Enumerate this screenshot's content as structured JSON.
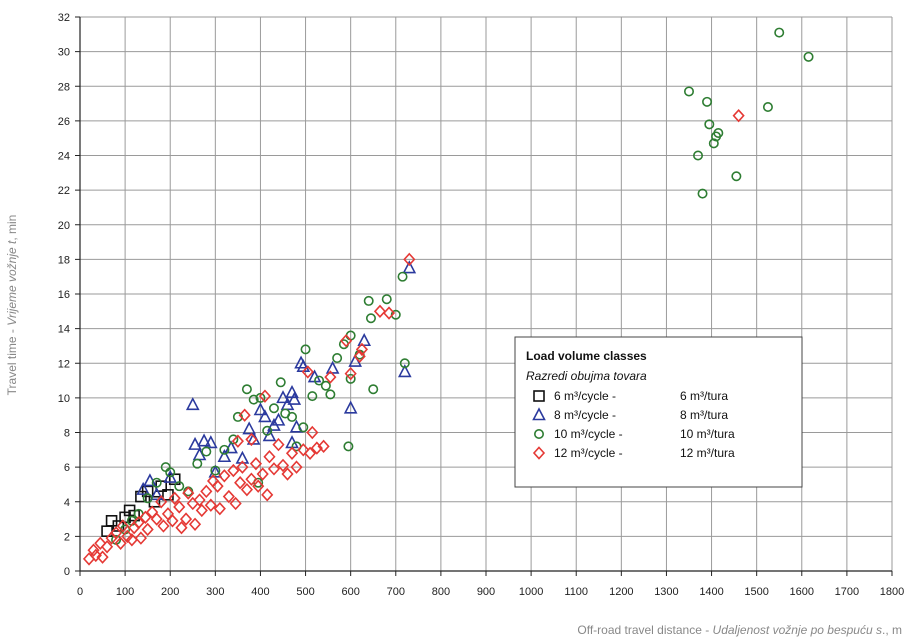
{
  "chart_data": {
    "type": "scatter",
    "xlabel_plain": "Off-road travel distance - ",
    "xlabel_italic": "Udaljenost vožnje po bespuću s",
    "xlabel_suffix": "., m",
    "ylabel_plain": "Travel time - ",
    "ylabel_italic": "Vrijeme vožnje t",
    "ylabel_suffix": ", min",
    "xlim": [
      0,
      1800
    ],
    "ylim": [
      0,
      32
    ],
    "x_ticks": [
      "0",
      "100",
      "200",
      "300",
      "400",
      "500",
      "600",
      "700",
      "800",
      "900",
      "1000",
      "1100",
      "1200",
      "1300",
      "1400",
      "1500",
      "1600",
      "1700",
      "1800"
    ],
    "y_ticks": [
      "0",
      "2",
      "4",
      "6",
      "8",
      "10",
      "12",
      "14",
      "16",
      "18",
      "20",
      "22",
      "24",
      "26",
      "28",
      "30",
      "32"
    ],
    "grid": true,
    "legend_position": "center-right",
    "legend_title": "Load volume classes",
    "legend_subtitle": "Razredi obujma tovara",
    "series": [
      {
        "name": "6 m³/cycle - 6 m³/tura",
        "label_left": "6 m³/cycle  -",
        "label_right": "6 m³/tura",
        "marker": "square",
        "color": "#111111",
        "points": [
          [
            70,
            2.9
          ],
          [
            85,
            2.6
          ],
          [
            100,
            3.1
          ],
          [
            110,
            3.5
          ],
          [
            120,
            3.2
          ],
          [
            135,
            4.3
          ],
          [
            150,
            4.6
          ],
          [
            165,
            4.0
          ],
          [
            180,
            4.9
          ],
          [
            195,
            4.4
          ],
          [
            210,
            5.3
          ],
          [
            60,
            2.3
          ]
        ]
      },
      {
        "name": "8 m³/cycle - 8 m³/tura",
        "label_left": "8 m³/cycle  -",
        "label_right": "8 m³/tura",
        "marker": "triangle",
        "color": "#2b3a9e",
        "points": [
          [
            140,
            4.7
          ],
          [
            155,
            5.2
          ],
          [
            170,
            4.4
          ],
          [
            200,
            5.4
          ],
          [
            250,
            9.6
          ],
          [
            255,
            7.3
          ],
          [
            265,
            6.7
          ],
          [
            275,
            7.5
          ],
          [
            290,
            7.4
          ],
          [
            300,
            5.7
          ],
          [
            320,
            6.6
          ],
          [
            335,
            7.1
          ],
          [
            360,
            6.5
          ],
          [
            375,
            8.2
          ],
          [
            385,
            7.6
          ],
          [
            400,
            9.3
          ],
          [
            410,
            8.9
          ],
          [
            420,
            7.8
          ],
          [
            430,
            8.4
          ],
          [
            440,
            8.7
          ],
          [
            450,
            10.0
          ],
          [
            460,
            9.6
          ],
          [
            470,
            10.3
          ],
          [
            475,
            9.9
          ],
          [
            480,
            8.3
          ],
          [
            490,
            12.0
          ],
          [
            495,
            11.8
          ],
          [
            520,
            11.2
          ],
          [
            560,
            11.7
          ],
          [
            610,
            12.1
          ],
          [
            630,
            13.3
          ],
          [
            720,
            11.5
          ],
          [
            730,
            17.5
          ],
          [
            600,
            9.4
          ],
          [
            470,
            7.4
          ]
        ]
      },
      {
        "name": "10 m³/cycle - 10 m³/tura",
        "label_left": "10 m³/cycle  -",
        "label_right": "10 m³/tura",
        "marker": "circle",
        "color": "#2e7d32",
        "points": [
          [
            80,
            1.8
          ],
          [
            100,
            2.4
          ],
          [
            115,
            2.9
          ],
          [
            130,
            3.3
          ],
          [
            150,
            4.2
          ],
          [
            170,
            5.1
          ],
          [
            190,
            6.0
          ],
          [
            200,
            5.7
          ],
          [
            220,
            4.9
          ],
          [
            240,
            4.6
          ],
          [
            260,
            6.2
          ],
          [
            280,
            6.9
          ],
          [
            300,
            5.8
          ],
          [
            320,
            7.0
          ],
          [
            340,
            7.6
          ],
          [
            350,
            8.9
          ],
          [
            370,
            10.5
          ],
          [
            385,
            9.9
          ],
          [
            395,
            5.1
          ],
          [
            400,
            10.0
          ],
          [
            415,
            8.1
          ],
          [
            430,
            9.4
          ],
          [
            445,
            10.9
          ],
          [
            455,
            9.1
          ],
          [
            470,
            8.9
          ],
          [
            480,
            7.2
          ],
          [
            495,
            8.3
          ],
          [
            500,
            12.8
          ],
          [
            515,
            10.1
          ],
          [
            530,
            11.0
          ],
          [
            545,
            10.7
          ],
          [
            555,
            10.2
          ],
          [
            570,
            12.3
          ],
          [
            585,
            13.1
          ],
          [
            600,
            11.1
          ],
          [
            600,
            13.6
          ],
          [
            620,
            12.5
          ],
          [
            640,
            15.6
          ],
          [
            645,
            14.6
          ],
          [
            650,
            10.5
          ],
          [
            680,
            15.7
          ],
          [
            700,
            14.8
          ],
          [
            715,
            17.0
          ],
          [
            720,
            12.0
          ],
          [
            595,
            7.2
          ],
          [
            1350,
            27.7
          ],
          [
            1370,
            24.0
          ],
          [
            1380,
            21.8
          ],
          [
            1390,
            27.1
          ],
          [
            1395,
            25.8
          ],
          [
            1405,
            24.7
          ],
          [
            1410,
            25.1
          ],
          [
            1415,
            25.3
          ],
          [
            1455,
            22.8
          ],
          [
            1525,
            26.8
          ],
          [
            1550,
            31.1
          ],
          [
            1615,
            29.7
          ]
        ]
      },
      {
        "name": "12 m³/cycle - 12 m³/tura",
        "label_left": "12 m³/cycle  -",
        "label_right": "12 m³/tura",
        "marker": "diamond",
        "color": "#e53935",
        "points": [
          [
            20,
            0.7
          ],
          [
            30,
            1.2
          ],
          [
            35,
            0.9
          ],
          [
            45,
            1.6
          ],
          [
            50,
            0.8
          ],
          [
            60,
            1.4
          ],
          [
            70,
            1.9
          ],
          [
            80,
            2.2
          ],
          [
            90,
            1.6
          ],
          [
            95,
            2.6
          ],
          [
            105,
            2.0
          ],
          [
            115,
            1.8
          ],
          [
            120,
            2.5
          ],
          [
            130,
            2.8
          ],
          [
            135,
            1.9
          ],
          [
            145,
            3.1
          ],
          [
            150,
            2.4
          ],
          [
            160,
            3.4
          ],
          [
            170,
            3.0
          ],
          [
            180,
            4.0
          ],
          [
            185,
            2.6
          ],
          [
            195,
            3.3
          ],
          [
            205,
            2.9
          ],
          [
            210,
            4.2
          ],
          [
            220,
            3.7
          ],
          [
            225,
            2.5
          ],
          [
            235,
            3.0
          ],
          [
            240,
            4.5
          ],
          [
            250,
            3.9
          ],
          [
            255,
            2.7
          ],
          [
            265,
            4.1
          ],
          [
            270,
            3.5
          ],
          [
            280,
            4.6
          ],
          [
            290,
            3.8
          ],
          [
            295,
            5.2
          ],
          [
            305,
            4.9
          ],
          [
            310,
            3.6
          ],
          [
            320,
            5.5
          ],
          [
            330,
            4.3
          ],
          [
            340,
            5.8
          ],
          [
            345,
            3.9
          ],
          [
            355,
            5.1
          ],
          [
            360,
            6.0
          ],
          [
            370,
            4.7
          ],
          [
            380,
            5.3
          ],
          [
            390,
            6.2
          ],
          [
            395,
            4.9
          ],
          [
            405,
            5.6
          ],
          [
            410,
            10.1
          ],
          [
            415,
            4.4
          ],
          [
            420,
            6.6
          ],
          [
            430,
            5.9
          ],
          [
            440,
            7.3
          ],
          [
            450,
            6.1
          ],
          [
            460,
            5.6
          ],
          [
            470,
            6.8
          ],
          [
            480,
            6.0
          ],
          [
            495,
            7.0
          ],
          [
            505,
            11.5
          ],
          [
            510,
            6.8
          ],
          [
            515,
            8.0
          ],
          [
            525,
            7.1
          ],
          [
            540,
            7.2
          ],
          [
            555,
            11.2
          ],
          [
            590,
            13.3
          ],
          [
            600,
            11.4
          ],
          [
            620,
            12.4
          ],
          [
            625,
            12.8
          ],
          [
            665,
            15.0
          ],
          [
            685,
            14.9
          ],
          [
            730,
            18.0
          ],
          [
            1460,
            26.3
          ],
          [
            365,
            9.0
          ],
          [
            380,
            7.6
          ],
          [
            350,
            7.5
          ]
        ]
      }
    ]
  }
}
